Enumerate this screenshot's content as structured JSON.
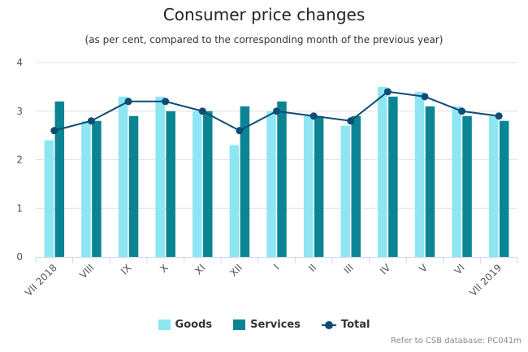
{
  "title": "Consumer price changes",
  "subtitle": "(as per cent, compared to the corresponding month of the previous year)",
  "credit": "Refer to CSB database: PC041m",
  "colors": {
    "goods": "#8ee6f2",
    "services": "#0b8593",
    "total": "#0f4c75",
    "grid": "#e0e0e0",
    "axis": "#ccd6eb",
    "text": "#555555"
  },
  "legend": {
    "goods": "Goods",
    "services": "Services",
    "total": "Total"
  },
  "chart_data": {
    "type": "bar",
    "categories": [
      "VII 2018",
      "VIII",
      "IX",
      "X",
      "XI",
      "XII",
      "I",
      "II",
      "III",
      "IV",
      "V",
      "VI",
      "VII 2019"
    ],
    "series": [
      {
        "name": "Goods",
        "type": "bar",
        "values": [
          2.4,
          2.8,
          3.3,
          3.3,
          3.0,
          2.3,
          3.0,
          2.9,
          2.7,
          3.5,
          3.4,
          3.1,
          2.9
        ]
      },
      {
        "name": "Services",
        "type": "bar",
        "values": [
          3.2,
          2.8,
          2.9,
          3.0,
          3.0,
          3.1,
          3.2,
          2.9,
          2.9,
          3.3,
          3.1,
          2.9,
          2.8
        ]
      },
      {
        "name": "Total",
        "type": "line",
        "values": [
          2.6,
          2.8,
          3.2,
          3.2,
          3.0,
          2.6,
          3.0,
          2.9,
          2.8,
          3.4,
          3.3,
          3.0,
          2.9
        ]
      }
    ],
    "ylim": [
      0,
      4
    ],
    "yticks": [
      0,
      1,
      2,
      3,
      4
    ],
    "xlabel": "",
    "ylabel": "",
    "grid": true,
    "legend_position": "bottom-center"
  }
}
